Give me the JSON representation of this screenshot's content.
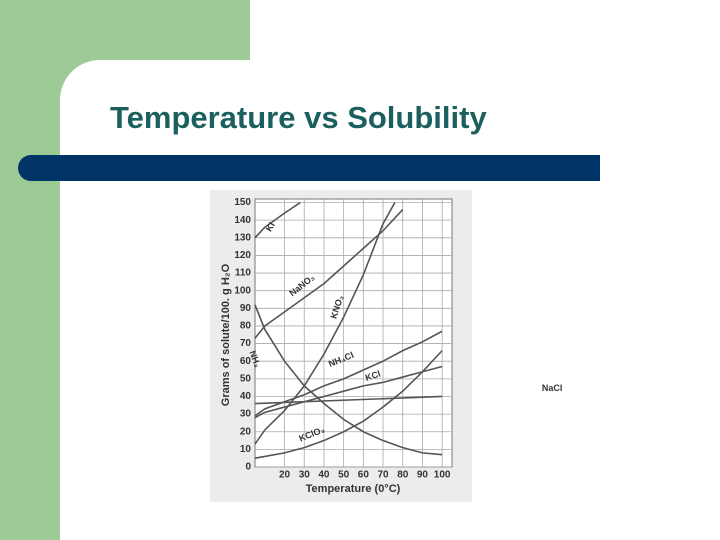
{
  "slide_title": "Temperature vs Solubility",
  "chart_data": {
    "type": "line",
    "xlabel": "Temperature (0°C)",
    "ylabel": "Grams of solute/100. g H₂O",
    "xlim": [
      5,
      105
    ],
    "ylim": [
      0,
      152
    ],
    "xticks": [
      20,
      30,
      40,
      50,
      60,
      70,
      80,
      90,
      100
    ],
    "yticks": [
      0,
      10,
      20,
      30,
      40,
      50,
      60,
      70,
      80,
      90,
      100,
      110,
      120,
      130,
      140,
      150
    ],
    "grid": true,
    "color": "#555555",
    "series": [
      {
        "name": "KI",
        "x": [
          5,
          10,
          20,
          28
        ],
        "values": [
          130,
          136,
          144,
          150
        ]
      },
      {
        "name": "NaNO₃",
        "x": [
          5,
          10,
          20,
          30,
          40,
          50,
          60,
          70,
          80
        ],
        "values": [
          73,
          80,
          88,
          96,
          104,
          114,
          124,
          134,
          146
        ]
      },
      {
        "name": "KNO₃",
        "x": [
          5,
          10,
          20,
          30,
          40,
          50,
          60,
          70,
          76
        ],
        "values": [
          13,
          21,
          32,
          46,
          64,
          85,
          109,
          138,
          150
        ]
      },
      {
        "name": "NH₃",
        "x": [
          5,
          10,
          20,
          30,
          40,
          50,
          60,
          70,
          80,
          90,
          100
        ],
        "values": [
          92,
          78,
          60,
          46,
          36,
          27,
          20,
          15,
          11,
          8,
          7
        ]
      },
      {
        "name": "NH₄Cl",
        "x": [
          5,
          10,
          20,
          30,
          40,
          50,
          60,
          70,
          80,
          90,
          100
        ],
        "values": [
          29,
          33,
          37,
          41,
          46,
          50,
          55,
          60,
          66,
          71,
          77
        ]
      },
      {
        "name": "KCl",
        "x": [
          5,
          10,
          20,
          30,
          40,
          50,
          60,
          70,
          80,
          90,
          100
        ],
        "values": [
          28,
          31,
          34,
          37,
          40,
          43,
          46,
          48,
          51,
          54,
          57
        ]
      },
      {
        "name": "NaCl",
        "x": [
          5,
          100
        ],
        "values": [
          36,
          40
        ]
      },
      {
        "name": "KClO₃",
        "x": [
          5,
          10,
          20,
          30,
          40,
          50,
          60,
          70,
          80,
          90,
          100
        ],
        "values": [
          5,
          6,
          8,
          11,
          15,
          20,
          26,
          34,
          43,
          54,
          66
        ]
      }
    ]
  }
}
